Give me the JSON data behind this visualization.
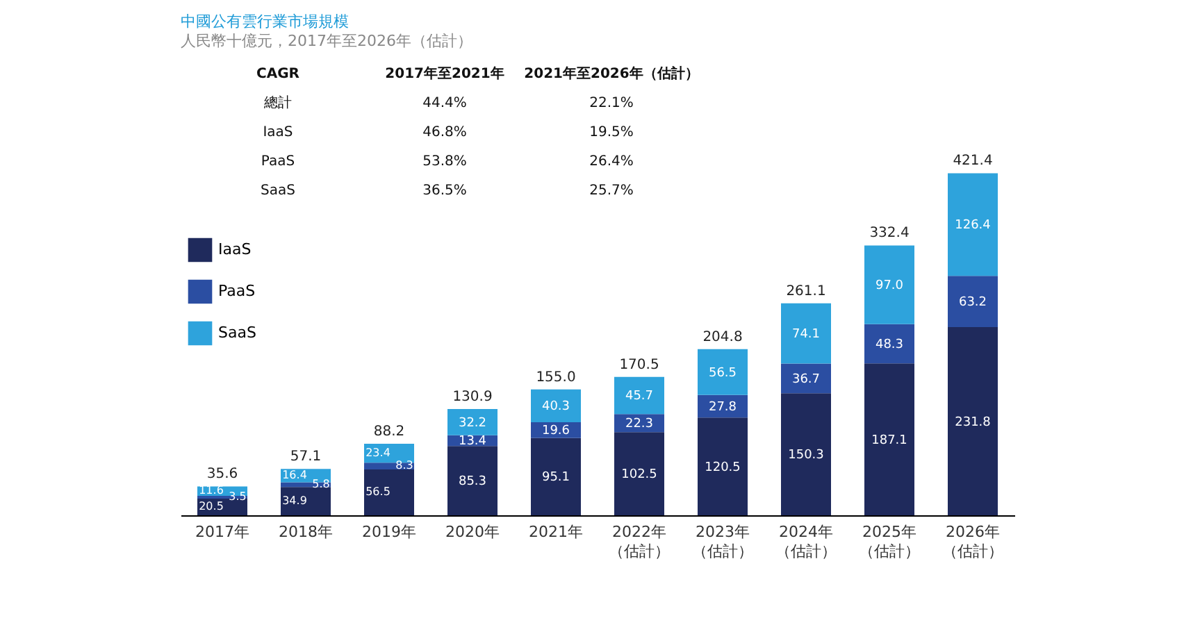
{
  "chart_data": {
    "type": "bar",
    "stacked": true,
    "title": "中國公有雲行業市場規模",
    "subtitle": "人民幣十億元，2017年至2026年（估計）",
    "categories": [
      "2017年",
      "2018年",
      "2019年",
      "2020年",
      "2021年",
      "2022年（估計）",
      "2023年（估計）",
      "2024年（估計）",
      "2025年（估計）",
      "2026年（估計）"
    ],
    "series": [
      {
        "name": "IaaS",
        "color": "#1f2a5c",
        "values": [
          20.5,
          34.9,
          56.5,
          85.3,
          95.1,
          102.5,
          120.5,
          150.3,
          187.1,
          231.8
        ]
      },
      {
        "name": "PaaS",
        "color": "#2b4ea2",
        "values": [
          3.5,
          5.8,
          8.3,
          13.4,
          19.6,
          22.3,
          27.8,
          36.7,
          48.3,
          63.2
        ]
      },
      {
        "name": "SaaS",
        "color": "#2ea3dc",
        "values": [
          11.6,
          16.4,
          23.4,
          32.2,
          40.3,
          45.7,
          56.5,
          74.1,
          97.0,
          126.4
        ],
        "value_labels": [
          "11.6",
          "16.4",
          "23.4",
          "32.2",
          "40.3",
          "45.7",
          "56.5",
          "74.1",
          "97.0",
          "126.4"
        ]
      }
    ],
    "totals": [
      "35.6",
      "57.1",
      "88.2",
      "130.9",
      "155.0",
      "170.5",
      "204.8",
      "261.1",
      "332.4",
      "421.4"
    ],
    "data_labels": true,
    "legend": "left",
    "grid": false,
    "annotations": [
      "CAGR",
      "2017年至2021年",
      "2021年至2026年（估計）",
      "總計",
      "44.4%",
      "22.1%",
      "IaaS",
      "46.8%",
      "19.5%",
      "PaaS",
      "53.8%",
      "26.4%",
      "SaaS",
      "36.5%",
      "25.7%"
    ]
  }
}
